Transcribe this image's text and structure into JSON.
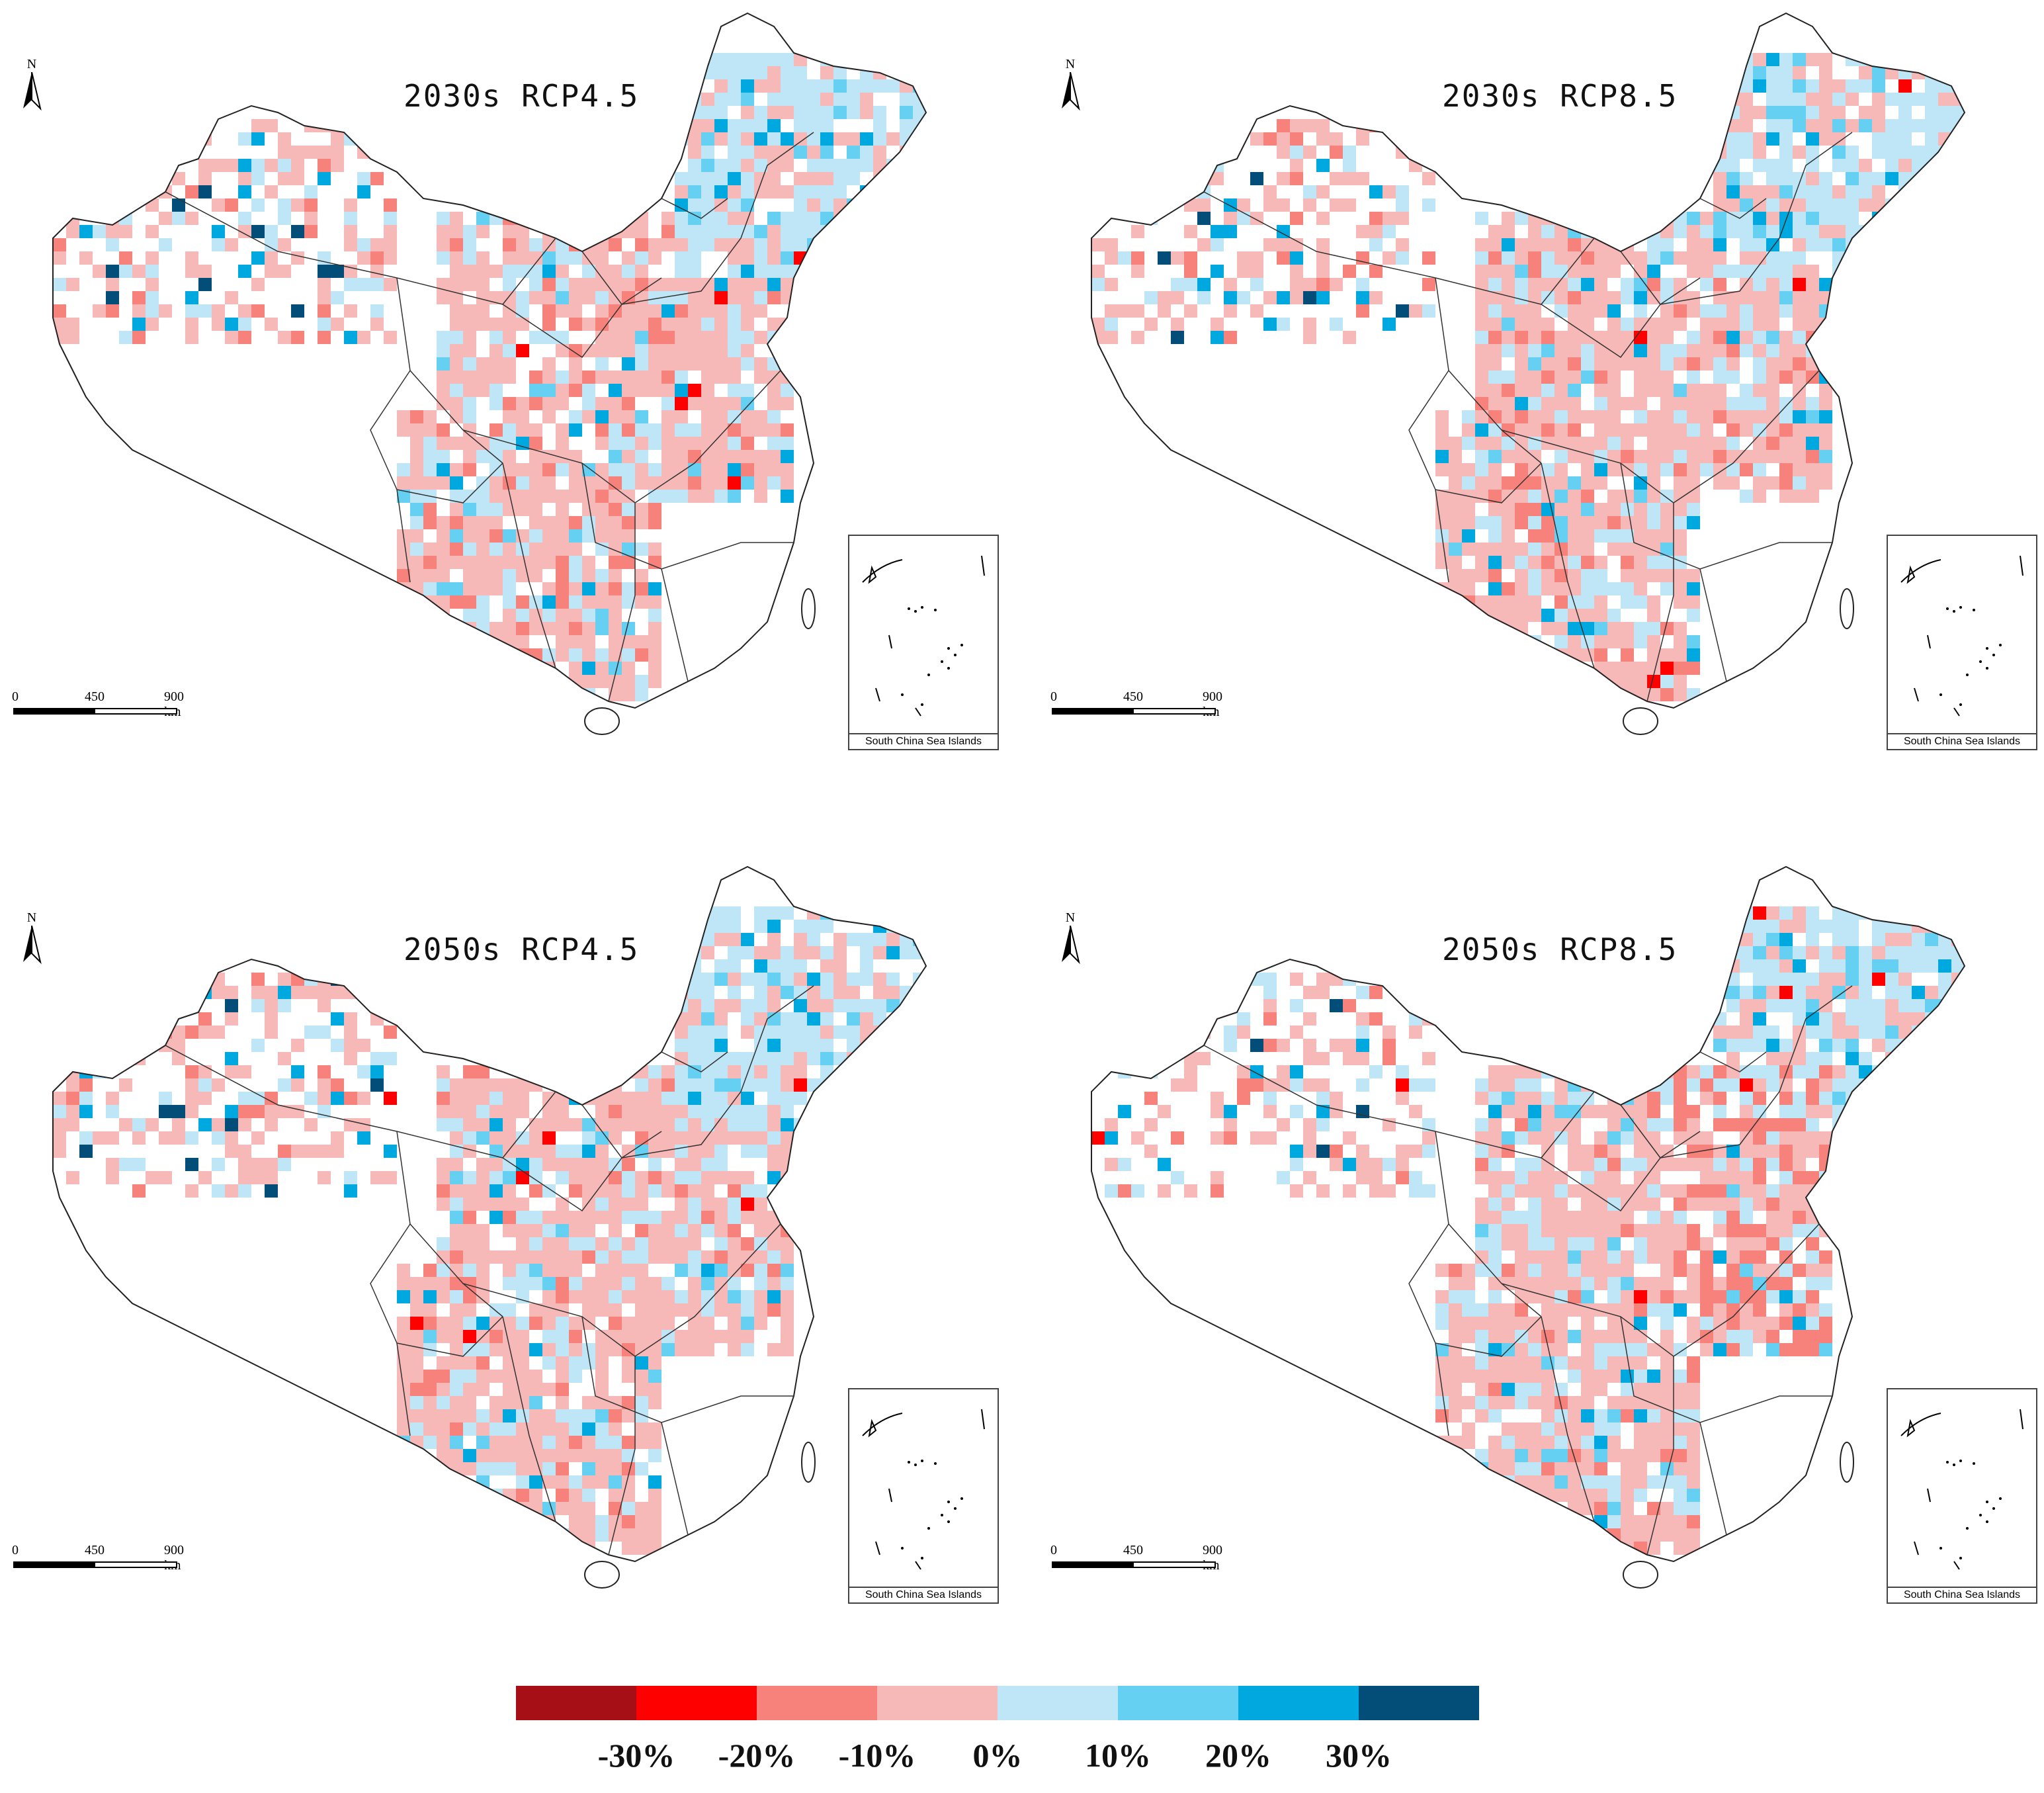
{
  "panels": [
    {
      "title": "2030s  RCP4.5",
      "scenario": "RCP4.5",
      "period": "2030s"
    },
    {
      "title": "2030s  RCP8.5",
      "scenario": "RCP8.5",
      "period": "2030s"
    },
    {
      "title": "2050s  RCP4.5",
      "scenario": "RCP4.5",
      "period": "2050s"
    },
    {
      "title": "2050s  RCP8.5",
      "scenario": "RCP8.5",
      "period": "2050s"
    }
  ],
  "north_arrow": {
    "label": "N"
  },
  "scale_bar": {
    "ticks": [
      "0",
      "450",
      "900 km"
    ]
  },
  "inset": {
    "caption": "South China Sea Islands"
  },
  "legend": {
    "bins": [
      {
        "color": "#a50f15"
      },
      {
        "color": "#ff0000"
      },
      {
        "color": "#f7817b"
      },
      {
        "color": "#f7b8b8"
      },
      {
        "color": "#bfe6f7"
      },
      {
        "color": "#66d0f2"
      },
      {
        "color": "#00a8e0"
      },
      {
        "color": "#024e78"
      }
    ],
    "tick_labels": [
      "-30%",
      "-20%",
      "-10%",
      "0%",
      "10%",
      "20%",
      "30%"
    ]
  }
}
